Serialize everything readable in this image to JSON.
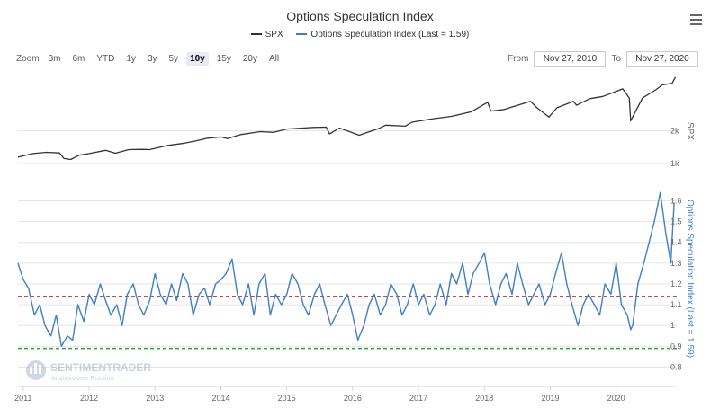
{
  "title": "Options Speculation Index",
  "legend": [
    {
      "name": "SPX",
      "color": "#333333"
    },
    {
      "name": "Options Speculation Index (Last = 1.59)",
      "color": "#3f7fc4"
    }
  ],
  "zoom": {
    "label": "Zoom",
    "buttons": [
      "3m",
      "6m",
      "YTD",
      "1y",
      "3y",
      "5y",
      "10y",
      "15y",
      "20y",
      "All"
    ],
    "active": "10y"
  },
  "range": {
    "from_label": "From",
    "from": "Nov 27, 2010",
    "to_label": "To",
    "to": "Nov 27, 2020"
  },
  "watermark": {
    "name": "SENTIMENTRADER",
    "tagline": "Analysis over Emotion"
  },
  "icons": {
    "menu": "hamburger-menu-icon",
    "logo": "sentimentrader-logo-icon"
  },
  "chart_data": [
    {
      "type": "line",
      "name": "SPX",
      "ylabel": "SPX",
      "yticks": [
        "1k",
        "2k"
      ],
      "ytick_values": [
        1000,
        2000
      ],
      "ylim": [
        500,
        3800
      ],
      "color": "#333333",
      "x": [
        2010.92,
        2011.15,
        2011.35,
        2011.55,
        2011.62,
        2011.72,
        2011.85,
        2012.0,
        2012.25,
        2012.4,
        2012.6,
        2012.8,
        2012.92,
        2013.2,
        2013.45,
        2013.6,
        2013.8,
        2014.0,
        2014.1,
        2014.3,
        2014.6,
        2014.8,
        2015.0,
        2015.4,
        2015.6,
        2015.65,
        2015.8,
        2016.05,
        2016.1,
        2016.4,
        2016.5,
        2016.8,
        2016.9,
        2017.2,
        2017.5,
        2017.8,
        2018.05,
        2018.1,
        2018.3,
        2018.7,
        2018.8,
        2018.98,
        2019.1,
        2019.35,
        2019.4,
        2019.6,
        2019.8,
        2020.1,
        2020.2,
        2020.22,
        2020.4,
        2020.6,
        2020.7,
        2020.85,
        2020.9
      ],
      "values": [
        1190,
        1300,
        1340,
        1320,
        1150,
        1120,
        1250,
        1300,
        1400,
        1310,
        1420,
        1430,
        1420,
        1550,
        1620,
        1680,
        1770,
        1810,
        1760,
        1880,
        1970,
        1950,
        2050,
        2100,
        2110,
        1900,
        2080,
        1900,
        1860,
        2070,
        2170,
        2140,
        2260,
        2360,
        2440,
        2580,
        2870,
        2600,
        2650,
        2900,
        2700,
        2420,
        2700,
        2900,
        2780,
        2980,
        3050,
        3280,
        3000,
        2300,
        3000,
        3250,
        3400,
        3450,
        3640
      ]
    },
    {
      "type": "line",
      "name": "Options Speculation Index (Last = 1.59)",
      "ylabel": "Options Speculation Index (Last = 1.59)",
      "yticks": [
        "0.8",
        "0.9",
        "1",
        "1.1",
        "1.2",
        "1.3",
        "1.4",
        "1.5",
        "1.6"
      ],
      "ytick_values": [
        0.8,
        0.9,
        1.0,
        1.1,
        1.2,
        1.3,
        1.4,
        1.5,
        1.6
      ],
      "ylim": [
        0.75,
        1.68
      ],
      "color": "#3f7fc4",
      "reference_lines": [
        {
          "value": 1.14,
          "color": "#c0302e",
          "style": "dashed"
        },
        {
          "value": 0.89,
          "color": "#2f9e3f",
          "style": "dashed"
        }
      ],
      "x": [
        2010.92,
        2011.0,
        2011.08,
        2011.17,
        2011.25,
        2011.33,
        2011.42,
        2011.5,
        2011.58,
        2011.67,
        2011.75,
        2011.83,
        2011.92,
        2012.0,
        2012.08,
        2012.17,
        2012.25,
        2012.33,
        2012.42,
        2012.5,
        2012.58,
        2012.67,
        2012.75,
        2012.83,
        2012.92,
        2013.0,
        2013.08,
        2013.17,
        2013.25,
        2013.33,
        2013.42,
        2013.5,
        2013.58,
        2013.67,
        2013.75,
        2013.83,
        2013.92,
        2014.0,
        2014.08,
        2014.17,
        2014.25,
        2014.33,
        2014.42,
        2014.5,
        2014.58,
        2014.67,
        2014.75,
        2014.83,
        2014.92,
        2015.0,
        2015.08,
        2015.17,
        2015.25,
        2015.33,
        2015.42,
        2015.5,
        2015.58,
        2015.67,
        2015.75,
        2015.83,
        2015.92,
        2016.0,
        2016.08,
        2016.17,
        2016.25,
        2016.33,
        2016.42,
        2016.5,
        2016.58,
        2016.67,
        2016.75,
        2016.83,
        2016.92,
        2017.0,
        2017.08,
        2017.17,
        2017.25,
        2017.33,
        2017.42,
        2017.5,
        2017.58,
        2017.67,
        2017.75,
        2017.83,
        2017.92,
        2018.0,
        2018.08,
        2018.17,
        2018.25,
        2018.33,
        2018.42,
        2018.5,
        2018.58,
        2018.67,
        2018.75,
        2018.83,
        2018.92,
        2019.0,
        2019.08,
        2019.17,
        2019.25,
        2019.33,
        2019.42,
        2019.5,
        2019.58,
        2019.67,
        2019.75,
        2019.83,
        2019.92,
        2020.0,
        2020.08,
        2020.17,
        2020.22,
        2020.25,
        2020.33,
        2020.42,
        2020.5,
        2020.58,
        2020.67,
        2020.75,
        2020.83,
        2020.88
      ],
      "values": [
        1.3,
        1.22,
        1.18,
        1.05,
        1.1,
        1.0,
        0.95,
        1.05,
        0.9,
        0.95,
        0.93,
        1.1,
        1.02,
        1.15,
        1.1,
        1.2,
        1.12,
        1.05,
        1.1,
        1.0,
        1.15,
        1.2,
        1.1,
        1.05,
        1.12,
        1.25,
        1.15,
        1.1,
        1.2,
        1.12,
        1.25,
        1.2,
        1.05,
        1.15,
        1.18,
        1.1,
        1.2,
        1.22,
        1.25,
        1.32,
        1.15,
        1.1,
        1.2,
        1.05,
        1.2,
        1.25,
        1.05,
        1.15,
        1.1,
        1.15,
        1.25,
        1.2,
        1.1,
        1.05,
        1.15,
        1.2,
        1.1,
        1.0,
        1.05,
        1.1,
        1.15,
        1.05,
        0.93,
        1.0,
        1.1,
        1.15,
        1.05,
        1.1,
        1.2,
        1.15,
        1.05,
        1.1,
        1.2,
        1.1,
        1.15,
        1.05,
        1.1,
        1.2,
        1.1,
        1.25,
        1.2,
        1.3,
        1.15,
        1.25,
        1.3,
        1.35,
        1.2,
        1.1,
        1.2,
        1.25,
        1.15,
        1.3,
        1.2,
        1.1,
        1.15,
        1.2,
        1.1,
        1.15,
        1.25,
        1.35,
        1.2,
        1.1,
        1.0,
        1.1,
        1.15,
        1.1,
        1.05,
        1.2,
        1.15,
        1.3,
        1.1,
        1.05,
        0.98,
        1.0,
        1.2,
        1.3,
        1.4,
        1.5,
        1.64,
        1.45,
        1.3,
        1.59
      ]
    }
  ],
  "xaxis": {
    "ticks": [
      "2011",
      "2012",
      "2013",
      "2014",
      "2015",
      "2016",
      "2017",
      "2018",
      "2019",
      "2020"
    ],
    "tick_values": [
      2011,
      2012,
      2013,
      2014,
      2015,
      2016,
      2017,
      2018,
      2019,
      2020
    ],
    "xlim": [
      2010.92,
      2020.92
    ]
  }
}
